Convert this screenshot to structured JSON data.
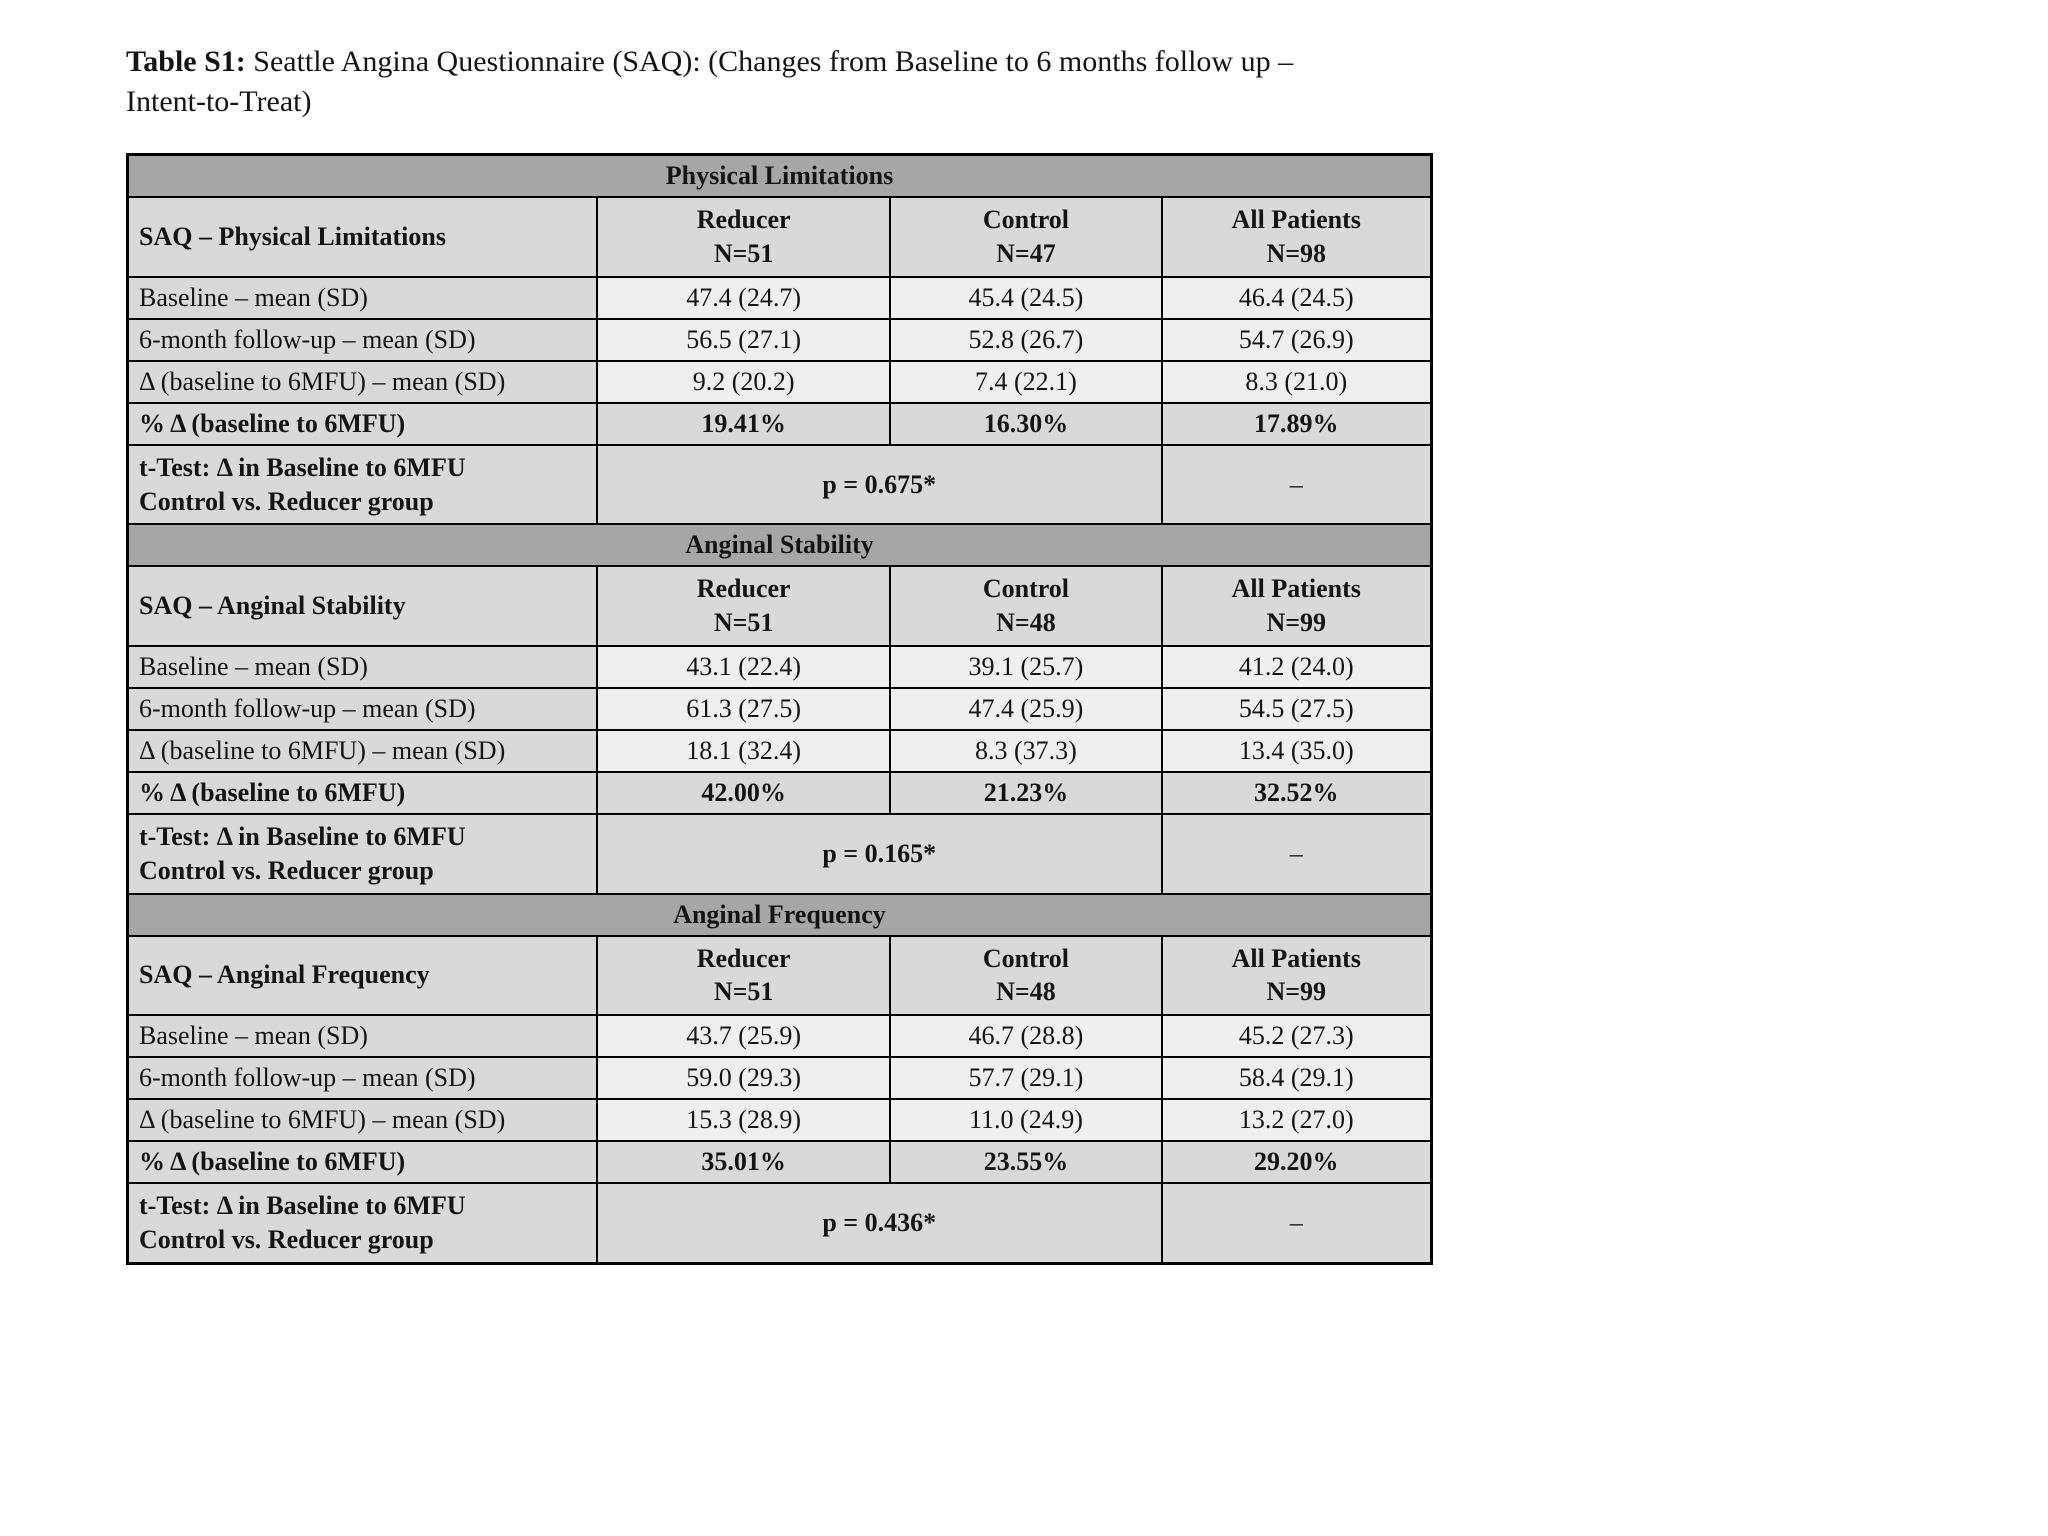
{
  "title": {
    "label": "Table S1:",
    "text": " Seattle Angina Questionnaire (SAQ):  (Changes from Baseline to 6 months follow up – Intent-to-Treat)"
  },
  "table": {
    "sections": [
      {
        "band": "Physical Limitations",
        "corner": "SAQ – Physical Limitations",
        "columns": [
          {
            "name": "Reducer",
            "n": "N=51"
          },
          {
            "name": "Control",
            "n": "N=47"
          },
          {
            "name": "All Patients",
            "n": "N=98"
          }
        ],
        "rows": [
          {
            "label": "Baseline – mean (SD)",
            "values": [
              "47.4 (24.7)",
              "45.4 (24.5)",
              "46.4 (24.5)"
            ],
            "bold": false
          },
          {
            "label": "6-month follow-up – mean (SD)",
            "values": [
              "56.5 (27.1)",
              "52.8 (26.7)",
              "54.7 (26.9)"
            ],
            "bold": false
          },
          {
            "label": "Δ (baseline to 6MFU) – mean (SD)",
            "values": [
              "9.2 (20.2)",
              "7.4 (22.1)",
              "8.3 (21.0)"
            ],
            "bold": false
          },
          {
            "label": "% Δ (baseline to 6MFU)",
            "values": [
              "19.41%",
              "16.30%",
              "17.89%"
            ],
            "bold": true
          }
        ],
        "ttest": {
          "label_line1": "t-Test: Δ in Baseline to 6MFU",
          "label_line2": "Control vs. Reducer group",
          "p_value": "p = 0.675*",
          "all_patients": "–"
        }
      },
      {
        "band": "Anginal Stability",
        "corner": "SAQ – Anginal Stability",
        "columns": [
          {
            "name": "Reducer",
            "n": "N=51"
          },
          {
            "name": "Control",
            "n": "N=48"
          },
          {
            "name": "All Patients",
            "n": "N=99"
          }
        ],
        "rows": [
          {
            "label": "Baseline – mean (SD)",
            "values": [
              "43.1 (22.4)",
              "39.1 (25.7)",
              "41.2 (24.0)"
            ],
            "bold": false
          },
          {
            "label": "6-month follow-up – mean (SD)",
            "values": [
              "61.3 (27.5)",
              "47.4 (25.9)",
              "54.5 (27.5)"
            ],
            "bold": false
          },
          {
            "label": "Δ (baseline to 6MFU) – mean (SD)",
            "values": [
              "18.1 (32.4)",
              "8.3 (37.3)",
              "13.4 (35.0)"
            ],
            "bold": false
          },
          {
            "label": "% Δ (baseline to 6MFU)",
            "values": [
              "42.00%",
              "21.23%",
              "32.52%"
            ],
            "bold": true
          }
        ],
        "ttest": {
          "label_line1": "t-Test: Δ in Baseline to 6MFU",
          "label_line2": "Control vs. Reducer group",
          "p_value": "p = 0.165*",
          "all_patients": "–"
        }
      },
      {
        "band": "Anginal Frequency",
        "corner": "SAQ – Anginal Frequency",
        "columns": [
          {
            "name": "Reducer",
            "n": "N=51"
          },
          {
            "name": "Control",
            "n": "N=48"
          },
          {
            "name": "All Patients",
            "n": "N=99"
          }
        ],
        "rows": [
          {
            "label": "Baseline – mean (SD)",
            "values": [
              "43.7 (25.9)",
              "46.7 (28.8)",
              "45.2 (27.3)"
            ],
            "bold": false
          },
          {
            "label": "6-month follow-up – mean (SD)",
            "values": [
              "59.0 (29.3)",
              "57.7 (29.1)",
              "58.4 (29.1)"
            ],
            "bold": false
          },
          {
            "label": "Δ (baseline to 6MFU) – mean (SD)",
            "values": [
              "15.3 (28.9)",
              "11.0 (24.9)",
              "13.2 (27.0)"
            ],
            "bold": false
          },
          {
            "label": "% Δ (baseline to 6MFU)",
            "values": [
              "35.01%",
              "23.55%",
              "29.20%"
            ],
            "bold": true
          }
        ],
        "ttest": {
          "label_line1": "t-Test: Δ in Baseline to 6MFU",
          "label_line2": "Control vs. Reducer group",
          "p_value": "p = 0.436*",
          "all_patients": "–"
        }
      }
    ]
  }
}
